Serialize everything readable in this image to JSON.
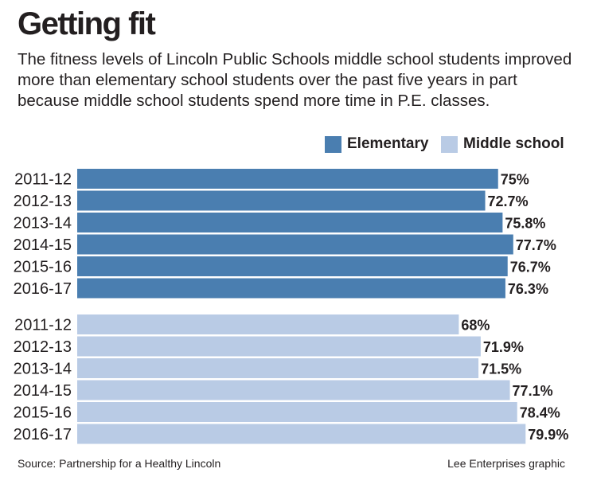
{
  "title": "Getting fit",
  "subtitle": "The fitness levels of Lincoln Public Schools middle school students improved more than elementary school students over the past five years in part because middle school students spend more time in P.E. classes.",
  "source": "Source: Partnership for a Healthy Lincoln",
  "credit": "Lee Enterprises graphic",
  "colors": {
    "elementary": "#4a7eb0",
    "middle_school": "#b9cbe5"
  },
  "chart_data": {
    "type": "bar",
    "orientation": "horizontal",
    "categories": [
      "2011-12",
      "2012-13",
      "2013-14",
      "2014-15",
      "2015-16",
      "2016-17"
    ],
    "series": [
      {
        "name": "Elementary",
        "values": [
          75,
          72.7,
          75.8,
          77.7,
          76.7,
          76.3
        ],
        "labels": [
          "75%",
          "72.7%",
          "75.8%",
          "77.7%",
          "76.7%",
          "76.3%"
        ]
      },
      {
        "name": "Middle school",
        "values": [
          68,
          71.9,
          71.5,
          77.1,
          78.4,
          79.9
        ],
        "labels": [
          "68%",
          "71.9%",
          "71.5%",
          "77.1%",
          "78.4%",
          "79.9%"
        ]
      }
    ],
    "xlim": [
      0,
      100
    ],
    "grid": false,
    "legend_position": "top-right"
  }
}
